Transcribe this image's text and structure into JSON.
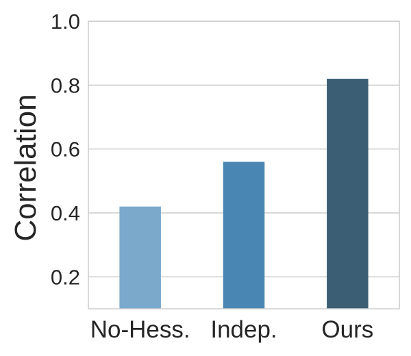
{
  "chart_data": {
    "type": "bar",
    "categories": [
      "No-Hess.",
      "Indep.",
      "Ours"
    ],
    "values": [
      0.42,
      0.56,
      0.82
    ],
    "colors": [
      "#7aa9cb",
      "#4a86b3",
      "#3c5e74"
    ],
    "xlabel": "",
    "ylabel": "Correlation",
    "ylim": [
      0.1,
      1.0
    ],
    "yticks": [
      0.2,
      0.4,
      0.6,
      0.8,
      1.0
    ],
    "ytick_labels": [
      "0.2",
      "0.4",
      "0.6",
      "0.8",
      "1.0"
    ],
    "grid": "horizontal",
    "frame_color": "#cccccc",
    "grid_color": "#cccccc"
  }
}
